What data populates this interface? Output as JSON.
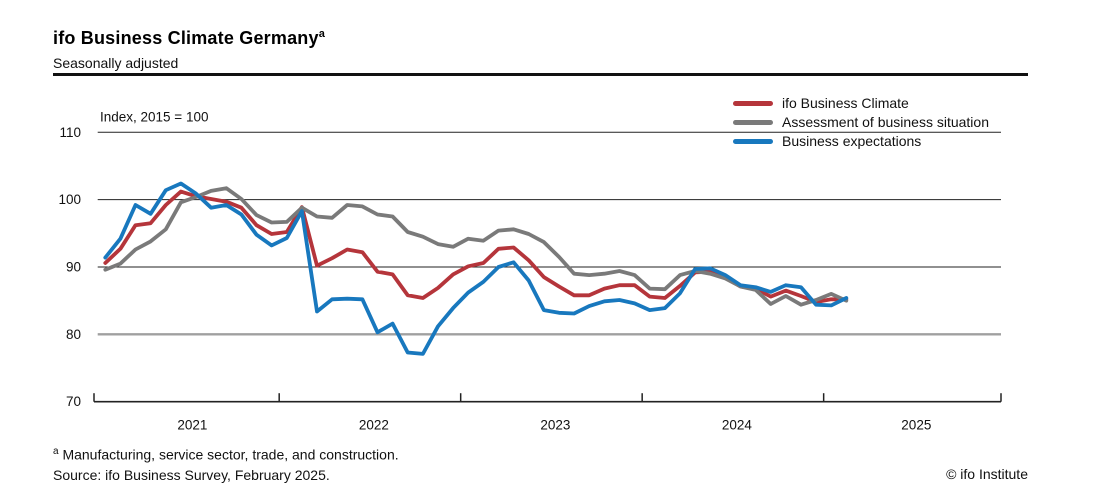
{
  "header": {
    "title": "ifo Business Climate Germany",
    "title_superscript": "a",
    "subtitle": "Seasonally adjusted"
  },
  "footer": {
    "footnote_superscript": "a",
    "footnote": " Manufacturing, service sector, trade, and construction.",
    "source": "Source: ifo Business Survey, February 2025.",
    "copyright": "© ifo Institute"
  },
  "chart_data": {
    "type": "line",
    "unit_label": "Index, 2015 = 100",
    "x_start": "2021-01",
    "x_end": "2025-02",
    "x_tick_years": [
      "2021",
      "2022",
      "2023",
      "2024",
      "2025"
    ],
    "ylim": [
      70,
      110
    ],
    "yticks": [
      70,
      80,
      90,
      100,
      110
    ],
    "grid": "horizontal",
    "legend_position": "top-right",
    "series": [
      {
        "name": "ifo Business Climate",
        "color": "#b5353b",
        "values": [
          90.6,
          92.7,
          96.2,
          96.5,
          99.2,
          101.2,
          100.5,
          100.1,
          99.7,
          98.8,
          96.2,
          94.9,
          95.2,
          98.9,
          90.2,
          91.3,
          92.6,
          92.2,
          89.3,
          88.9,
          85.8,
          85.4,
          86.9,
          88.9,
          90.1,
          90.6,
          92.7,
          92.9,
          91.0,
          88.5,
          87.1,
          85.8,
          85.8,
          86.8,
          87.3,
          87.3,
          85.6,
          85.4,
          87.2,
          89.2,
          89.3,
          88.5,
          87.1,
          86.8,
          85.6,
          86.5,
          85.7,
          84.8,
          85.2,
          85.2
        ]
      },
      {
        "name": "Assessment of business situation",
        "color": "#7a7a7a",
        "values": [
          89.6,
          90.5,
          92.6,
          93.8,
          95.6,
          99.6,
          100.4,
          101.3,
          101.7,
          100.1,
          97.7,
          96.6,
          96.7,
          98.8,
          97.5,
          97.3,
          99.2,
          99.0,
          97.8,
          97.5,
          95.2,
          94.5,
          93.4,
          93.0,
          94.2,
          93.9,
          95.4,
          95.6,
          94.9,
          93.7,
          91.5,
          89.0,
          88.8,
          89.0,
          89.4,
          88.8,
          86.8,
          86.7,
          88.8,
          89.4,
          89.0,
          88.3,
          87.1,
          86.6,
          84.5,
          85.7,
          84.4,
          85.1,
          86.0,
          85.0
        ]
      },
      {
        "name": "Business expectations",
        "color": "#1878be",
        "values": [
          91.4,
          94.2,
          99.2,
          97.9,
          101.4,
          102.4,
          100.9,
          98.8,
          99.2,
          97.8,
          94.8,
          93.2,
          94.3,
          98.3,
          83.4,
          85.2,
          85.3,
          85.2,
          80.3,
          81.6,
          77.3,
          77.1,
          81.2,
          83.9,
          86.2,
          87.8,
          90.0,
          90.7,
          88.0,
          83.6,
          83.2,
          83.1,
          84.2,
          84.9,
          85.1,
          84.6,
          83.6,
          83.9,
          86.1,
          89.7,
          89.8,
          88.8,
          87.3,
          87.0,
          86.3,
          87.3,
          87.0,
          84.4,
          84.3,
          85.4
        ]
      }
    ]
  }
}
